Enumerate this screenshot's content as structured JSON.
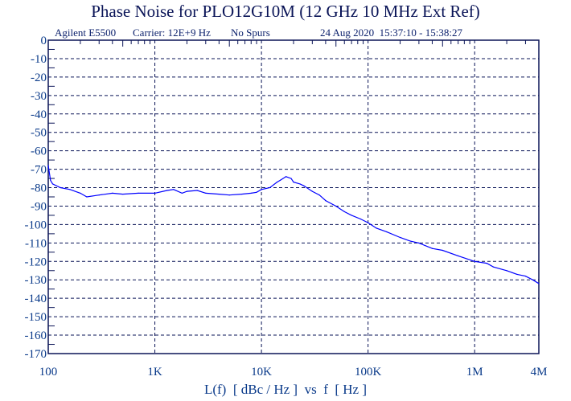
{
  "chart_data": {
    "type": "line",
    "title": "Phase Noise for PLO12G10M (12 GHz 10 MHz Ext Ref)",
    "header": {
      "instrument": "Agilent E5500",
      "carrier": "Carrier: 12E+9 Hz",
      "spurs": "No Spurs",
      "date": "24 Aug 2020  15:37:10 - 15:38:27"
    },
    "xlabel": "L(f)  [ dBc / Hz ]  vs  f  [ Hz ]",
    "ylabel": "",
    "xscale": "log",
    "xlim": [
      100,
      4000000
    ],
    "ylim": [
      -170,
      0
    ],
    "grid": true,
    "x_ticks": [
      {
        "v": 100,
        "label": "100"
      },
      {
        "v": 1000,
        "label": "1K"
      },
      {
        "v": 10000,
        "label": "10K"
      },
      {
        "v": 100000,
        "label": "100K"
      },
      {
        "v": 1000000,
        "label": "1M"
      },
      {
        "v": 4000000,
        "label": "4M"
      }
    ],
    "y_ticks": [
      0,
      -10,
      -20,
      -30,
      -40,
      -50,
      -60,
      -70,
      -80,
      -90,
      -100,
      -110,
      -120,
      -130,
      -140,
      -150,
      -160,
      -170
    ],
    "line_color": "#0000ff",
    "x": [
      100,
      105,
      110,
      130,
      160,
      200,
      230,
      300,
      400,
      500,
      700,
      1000,
      1300,
      1500,
      1800,
      2000,
      2500,
      3000,
      4000,
      5000,
      6500,
      8000,
      9000,
      10000,
      12000,
      14000,
      15000,
      17000,
      19000,
      20000,
      23000,
      25000,
      30000,
      35000,
      40000,
      50000,
      60000,
      70000,
      85000,
      100000,
      120000,
      150000,
      200000,
      250000,
      300000,
      400000,
      500000,
      700000,
      1000000,
      1300000,
      1500000,
      2000000,
      2500000,
      3000000,
      3500000,
      4000000
    ],
    "y": [
      -68,
      -76,
      -78,
      -80,
      -81,
      -83,
      -85,
      -84,
      -83,
      -83.5,
      -83,
      -83,
      -81.5,
      -81,
      -83,
      -82,
      -81.5,
      -83,
      -83.5,
      -84,
      -83.5,
      -83,
      -82.5,
      -81,
      -80,
      -77,
      -76,
      -74,
      -75,
      -77,
      -78,
      -79,
      -82,
      -84,
      -87,
      -90,
      -93,
      -95,
      -97,
      -99,
      -102,
      -104,
      -107,
      -109,
      -110,
      -113,
      -114,
      -117,
      -120,
      -121,
      -123,
      -125,
      -127,
      -128,
      -130,
      -132
    ]
  }
}
